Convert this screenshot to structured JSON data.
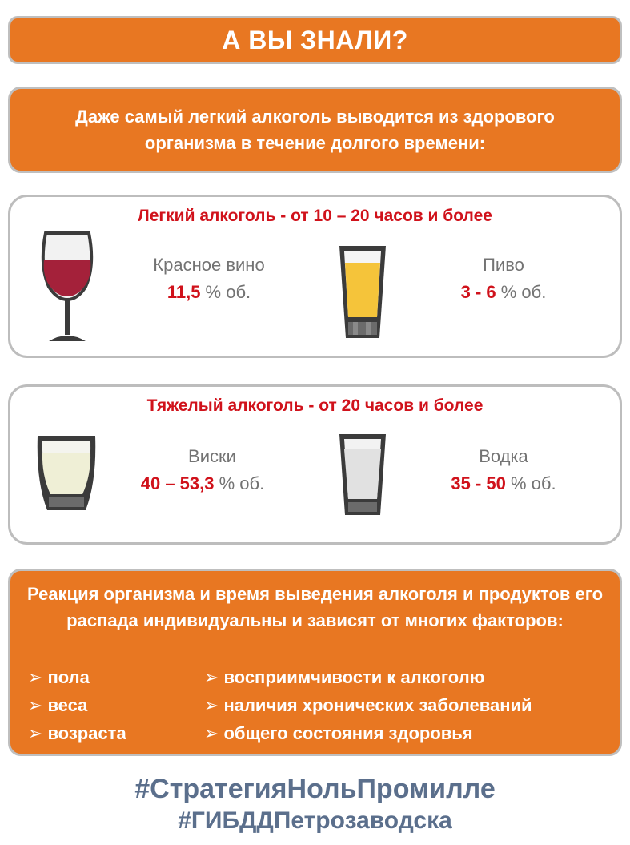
{
  "title": "А ВЫ ЗНАЛИ?",
  "intro": "Даже самый легкий алкоголь выводится из здорового организма в течение долгого времени:",
  "light": {
    "heading": "Легкий алкоголь  - от 10 – 20 часов и более",
    "drinks": [
      {
        "name": "Красное вино",
        "strength": "11,5",
        "unit": " % об.",
        "icon": "wine-glass-icon"
      },
      {
        "name": "Пиво",
        "strength": "3 - 6",
        "unit": " % об.",
        "icon": "beer-glass-icon"
      }
    ]
  },
  "heavy": {
    "heading": "Тяжелый алкоголь  - от 20 часов и более",
    "drinks": [
      {
        "name": "Виски",
        "strength": "40 – 53,3",
        "unit": " % об.",
        "icon": "whisky-glass-icon"
      },
      {
        "name": "Водка",
        "strength": "35 - 50",
        "unit": " % об.",
        "icon": "vodka-glass-icon"
      }
    ]
  },
  "factors": {
    "intro": "Реакция организма и время выведения алкоголя и продуктов его распада индивидуальны и зависят от многих факторов:",
    "bullet": "➢",
    "left": [
      "пола",
      "веса",
      "возраста"
    ],
    "right": [
      "восприимчивости к алкоголю",
      "наличия хронических заболеваний",
      "общего состояния здоровья"
    ]
  },
  "hashtags": [
    "#СтратегияНольПромилле",
    "#ГИБДДПетрозаводска"
  ],
  "colors": {
    "orange": "#e87722",
    "red": "#d0121b",
    "gray_text": "#737373",
    "hashtag": "#5b6f8c"
  }
}
